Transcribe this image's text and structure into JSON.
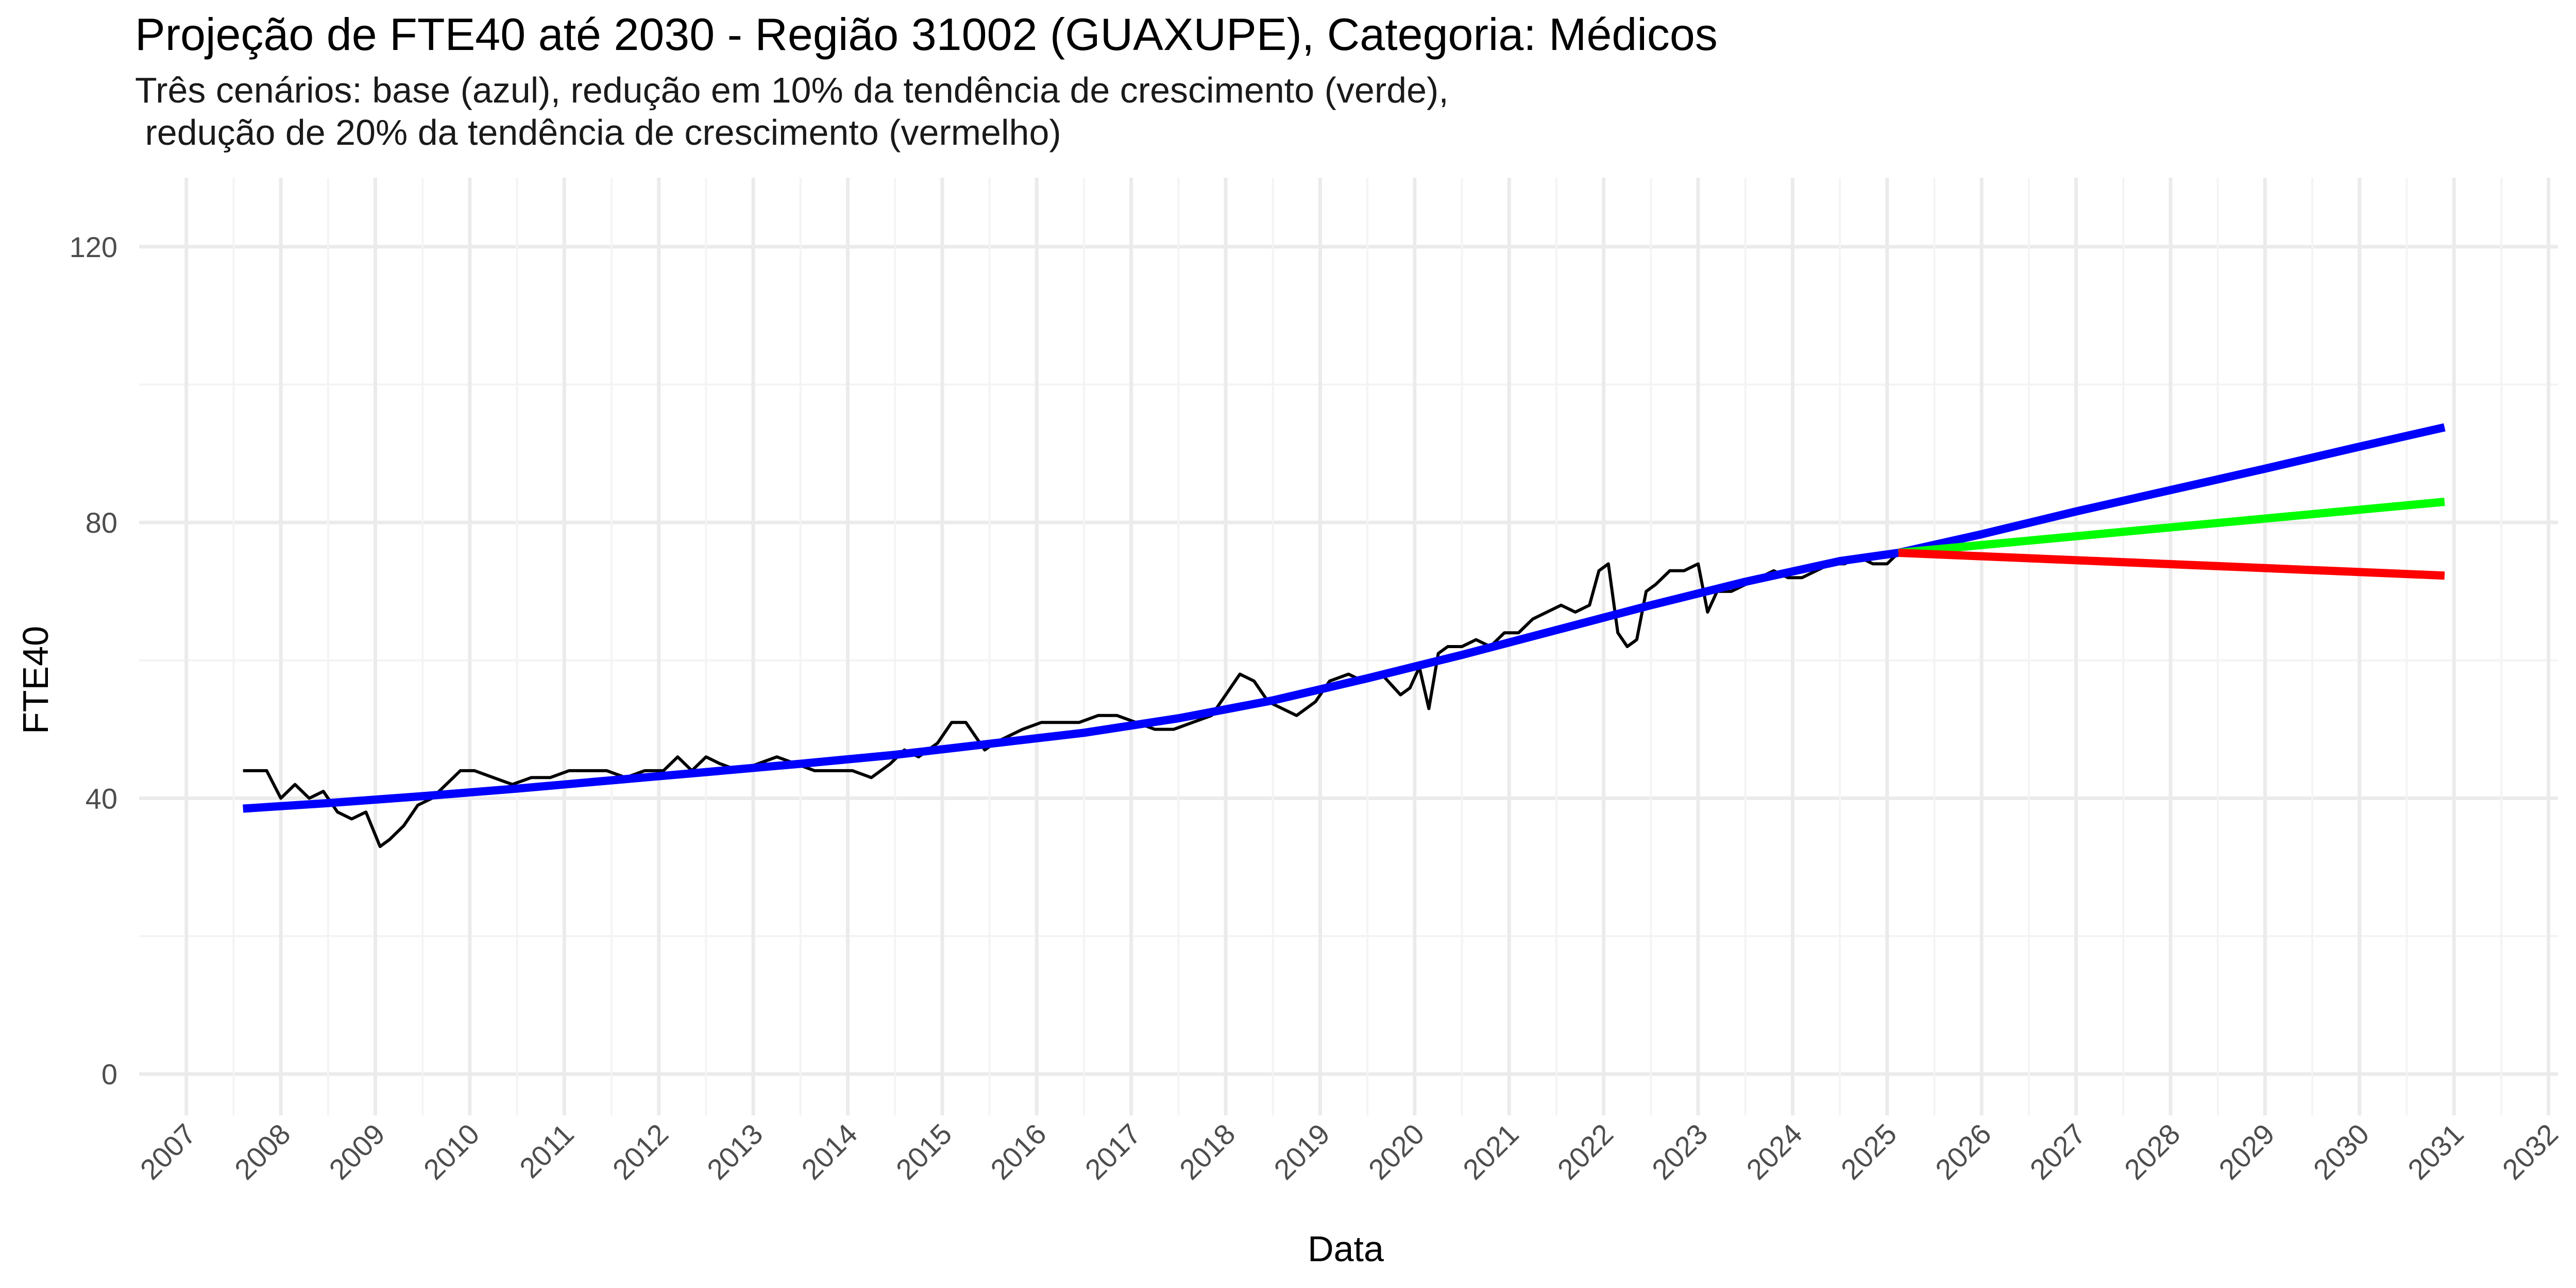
{
  "chart_data": {
    "type": "line",
    "title": "Projeção de FTE40 até 2030 - Região 31002 (GUAXUPE), Categoria: Médicos",
    "subtitle": "Três cenários: base (azul), redução em 10% da tendência de crescimento (verde),\n redução de 20% da tendência de crescimento (vermelho)",
    "xlabel": "Data",
    "ylabel": "FTE40",
    "xlim": [
      2006.5,
      2032.1
    ],
    "ylim": [
      -6,
      130
    ],
    "y_ticks": [
      0,
      40,
      80,
      120
    ],
    "x_ticks": [
      "2007",
      "2008",
      "2009",
      "2010",
      "2011",
      "2012",
      "2013",
      "2014",
      "2015",
      "2016",
      "2017",
      "2018",
      "2019",
      "2020",
      "2021",
      "2022",
      "2023",
      "2024",
      "2025",
      "2026",
      "2027",
      "2028",
      "2029",
      "2030",
      "2031",
      "2032"
    ],
    "grid": true,
    "colors": {
      "observed": "#000000",
      "base": "#0000ff",
      "reduction_10": "#00ff00",
      "reduction_20": "#ff0000",
      "grid_major": "#ebebeb",
      "grid_minor": "#f4f4f4"
    },
    "series": [
      {
        "x": [
          2007.6,
          2007.85,
          2008.0,
          2008.15,
          2008.3,
          2008.45,
          2008.6,
          2008.75,
          2008.9,
          2009.05,
          2009.15,
          2009.3,
          2009.45,
          2009.6,
          2009.75,
          2009.9,
          2010.05,
          2010.25,
          2010.45,
          2010.65,
          2010.85,
          2011.05,
          2011.25,
          2011.45,
          2011.65,
          2011.85,
          2012.05,
          2012.2,
          2012.35,
          2012.5,
          2012.65,
          2012.85,
          2013.05,
          2013.25,
          2013.45,
          2013.65,
          2013.85,
          2014.05,
          2014.25,
          2014.45,
          2014.6,
          2014.75,
          2014.95,
          2015.1,
          2015.25,
          2015.45,
          2015.55,
          2015.7,
          2015.85,
          2016.05,
          2016.25,
          2016.45,
          2016.65,
          2016.85,
          2017.05,
          2017.25,
          2017.45,
          2017.65,
          2017.85,
          2018.0,
          2018.15,
          2018.3,
          2018.45,
          2018.6,
          2018.75,
          2018.95,
          2019.1,
          2019.3,
          2019.45,
          2019.65,
          2019.85,
          2019.95,
          2020.05,
          2020.15,
          2020.25,
          2020.35,
          2020.5,
          2020.65,
          2020.8,
          2020.95,
          2021.1,
          2021.25,
          2021.4,
          2021.55,
          2021.7,
          2021.85,
          2021.95,
          2022.05,
          2022.15,
          2022.25,
          2022.35,
          2022.45,
          2022.55,
          2022.7,
          2022.85,
          2023.0,
          2023.1,
          2023.2,
          2023.35,
          2023.5,
          2023.65,
          2023.8,
          2023.95,
          2024.1,
          2024.25,
          2024.4,
          2024.55,
          2024.7,
          2024.85,
          2025.0,
          2025.15
        ],
        "y": [
          44,
          44,
          40,
          42,
          40,
          41,
          38,
          37,
          38,
          33,
          34,
          36,
          39,
          40,
          42,
          44,
          44,
          43,
          42,
          43,
          43,
          44,
          44,
          44,
          43,
          44,
          44,
          46,
          44,
          46,
          45,
          44,
          45,
          46,
          45,
          44,
          44,
          44,
          43,
          45,
          47,
          46,
          48,
          51,
          51,
          47,
          48,
          49,
          50,
          51,
          51,
          51,
          52,
          52,
          51,
          50,
          50,
          51,
          52,
          55,
          58,
          57,
          54,
          53,
          52,
          54,
          57,
          58,
          57,
          58,
          55,
          56,
          59,
          53,
          61,
          62,
          62,
          63,
          62,
          64,
          64,
          66,
          67,
          68,
          67,
          68,
          73,
          74,
          64,
          62,
          63,
          70,
          71,
          73,
          73,
          74,
          67,
          70,
          70,
          71,
          72,
          73,
          72,
          72,
          73,
          74,
          74,
          75,
          74,
          74,
          76
        ],
        "line_width": 6
      },
      {
        "x": [
          2007.6,
          2008.5,
          2009.5,
          2010.5,
          2011.5,
          2012.5,
          2013.5,
          2014.5,
          2015.5,
          2016.5,
          2017.5,
          2018.5,
          2019.5,
          2020.5,
          2021.5,
          2022.5,
          2023.5,
          2024.5,
          2025.12,
          2026.0,
          2027.0,
          2028.0,
          2029.0,
          2030.0,
          2030.9
        ],
        "y": [
          38.5,
          39.3,
          40.3,
          41.4,
          42.6,
          43.8,
          45.0,
          46.3,
          47.9,
          49.5,
          51.6,
          54.2,
          57.4,
          60.8,
          64.4,
          68.0,
          71.4,
          74.4,
          75.6,
          78.3,
          81.6,
          84.7,
          87.8,
          91.0,
          93.8
        ],
        "line_width": 16
      },
      {
        "x": [
          2025.12,
          2030.9
        ],
        "y": [
          75.6,
          83.0
        ],
        "line_width": 16
      },
      {
        "x": [
          2025.12,
          2030.9
        ],
        "y": [
          75.6,
          72.3
        ],
        "line_width": 16
      }
    ]
  }
}
